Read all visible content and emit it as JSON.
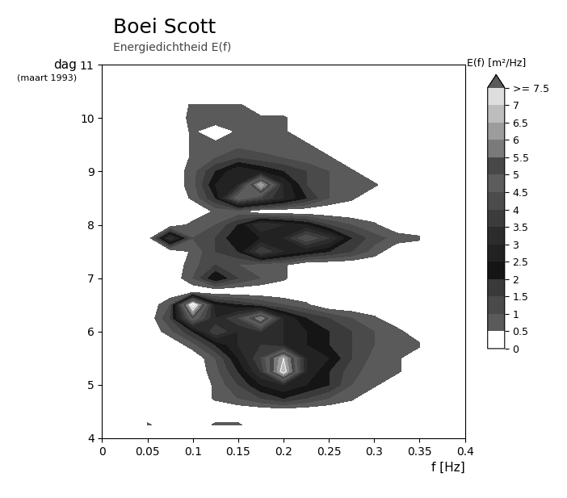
{
  "chart_data": {
    "type": "contour",
    "title": "Boei Scott",
    "subtitle": "Energiedichtheid E(f)",
    "x_label": "f [Hz]",
    "y_label": "dag",
    "y_label_sub": "(maart 1993)",
    "xlim": [
      0,
      0.4
    ],
    "xticks": [
      0,
      0.05,
      0.1,
      0.15,
      0.2,
      0.25,
      0.3,
      0.35,
      0.4
    ],
    "ylim": [
      4,
      11
    ],
    "yticks": [
      4,
      5,
      6,
      7,
      8,
      9,
      10,
      11
    ],
    "x": [
      0.05,
      0.075,
      0.1,
      0.125,
      0.15,
      0.175,
      0.2,
      0.225,
      0.25,
      0.275,
      0.3,
      0.325,
      0.35
    ],
    "y": [
      4.25,
      4.5,
      4.75,
      5.0,
      5.25,
      5.5,
      5.75,
      6.0,
      6.25,
      6.5,
      6.75,
      7.0,
      7.25,
      7.5,
      7.75,
      8.0,
      8.25,
      8.5,
      8.75,
      9.0,
      9.25,
      9.5,
      9.75,
      10.0,
      10.25
    ],
    "cells": [
      [
        0.6,
        0,
        0,
        0.6,
        0.6,
        0,
        0,
        0,
        0,
        0,
        0,
        0,
        0
      ],
      [
        0,
        0,
        0,
        0,
        0,
        0,
        0,
        0,
        0,
        0,
        0,
        0,
        0
      ],
      [
        0,
        0,
        0,
        0.6,
        1,
        1.5,
        2,
        1.5,
        1,
        0.6,
        0,
        0,
        0
      ],
      [
        0,
        0,
        0,
        0.6,
        1.5,
        2.5,
        3,
        2.5,
        2,
        1,
        0.6,
        0,
        0
      ],
      [
        0,
        0,
        0,
        0.8,
        2,
        3.5,
        7,
        3,
        2,
        1.2,
        0.7,
        0.6,
        0
      ],
      [
        0,
        0,
        0,
        1,
        2.5,
        4,
        6.5,
        3,
        2.5,
        1.5,
        0.8,
        0.6,
        0
      ],
      [
        0,
        0,
        0.8,
        2,
        3,
        3.5,
        3,
        2.5,
        2,
        1.5,
        1,
        0.7,
        0.6
      ],
      [
        0,
        0.8,
        2,
        4,
        3,
        3.5,
        3,
        2.5,
        2,
        1.5,
        1,
        0.7,
        0
      ],
      [
        0,
        1.5,
        5,
        3,
        4,
        6,
        3,
        2,
        1.5,
        1,
        0.6,
        0,
        0
      ],
      [
        0,
        1,
        7.5,
        2.5,
        2,
        1.5,
        1,
        0.6,
        0,
        0,
        0,
        0,
        0
      ],
      [
        0,
        0,
        0,
        0,
        0,
        0,
        0,
        0,
        0,
        0,
        0,
        0,
        0
      ],
      [
        0,
        0,
        1,
        2.5,
        1.5,
        1,
        0.6,
        0,
        0,
        0,
        0,
        0,
        0
      ],
      [
        0,
        0,
        0.8,
        1.5,
        1,
        0.7,
        0.6,
        0,
        0,
        0,
        0,
        0,
        0
      ],
      [
        0,
        0,
        0.6,
        1.5,
        2,
        4,
        3,
        2.5,
        2,
        1.5,
        0.8,
        0,
        0
      ],
      [
        0,
        3.5,
        1,
        1.5,
        2.5,
        2.5,
        3,
        4.5,
        3.5,
        2,
        1.2,
        0.8,
        0.6
      ],
      [
        0,
        0,
        0.7,
        1,
        2,
        3.5,
        3,
        2.5,
        1.5,
        1,
        0.6,
        0,
        0
      ],
      [
        0,
        0,
        0,
        0.6,
        0.6,
        0,
        0,
        0,
        0,
        0,
        0,
        0,
        0
      ],
      [
        0,
        0,
        0.6,
        2,
        5,
        4,
        3,
        2,
        1,
        0.6,
        0,
        0,
        0
      ],
      [
        0,
        0,
        0.8,
        2.5,
        3,
        6.5,
        3,
        1.5,
        1,
        0.6,
        0.6,
        0,
        0
      ],
      [
        0,
        0,
        0.8,
        2,
        3,
        2.5,
        2,
        1.5,
        1,
        0.6,
        0,
        0,
        0
      ],
      [
        0,
        0,
        0.6,
        1,
        1.5,
        1.2,
        1,
        0.7,
        0.6,
        0,
        0,
        0,
        0
      ],
      [
        0,
        0,
        0.6,
        0.7,
        0.8,
        0.7,
        0.6,
        0.6,
        0,
        0,
        0,
        0,
        0
      ],
      [
        0,
        0,
        0.6,
        0,
        0.6,
        0.6,
        0.6,
        0,
        0,
        0,
        0,
        0,
        0
      ],
      [
        0,
        0,
        0.7,
        1,
        0.8,
        0.6,
        0.6,
        0,
        0,
        0,
        0,
        0,
        0
      ],
      [
        0,
        0,
        0.6,
        0.6,
        0.6,
        0,
        0,
        0,
        0,
        0,
        0,
        0,
        0
      ]
    ],
    "colorbar_title": "E(f) [m²/Hz]",
    "colorbar_ticks": [
      0,
      0.5,
      1,
      1.5,
      2,
      2.5,
      3,
      3.5,
      4,
      4.5,
      5,
      5.5,
      6,
      6.5,
      7,
      {
        "value": 7.5,
        "label": ">= 7.5"
      }
    ],
    "colors": [
      "#ffffff",
      "#5a5a5a",
      "#4a4a4a",
      "#3a3a3a",
      "#151515",
      "#222222",
      "#2c2c2c",
      "#3c3c3c",
      "#4c4c4c",
      "#5c5c5c",
      "#484848",
      "#7a7a7a",
      "#9c9c9c",
      "#bdbdbd",
      "#dedede",
      "#5a5a5a"
    ]
  }
}
